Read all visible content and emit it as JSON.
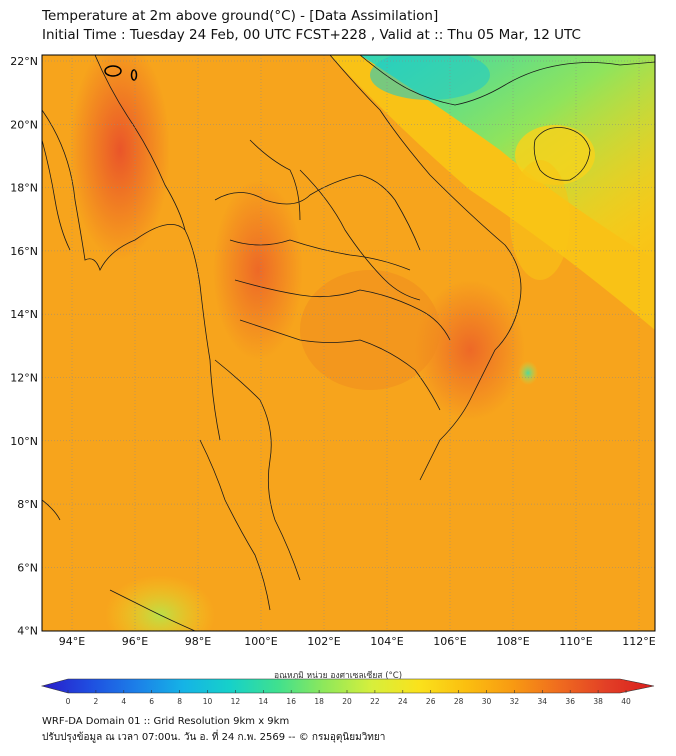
{
  "header": {
    "title_line1": "Temperature at 2m above ground(°C) - [Data Assimilation]",
    "title_line2": "Initial Time : Tuesday 24 Feb, 00 UTC FCST+228 , Valid at :: Thu 05 Mar, 12 UTC"
  },
  "map": {
    "lat_labels": [
      "22°N",
      "20°N",
      "18°N",
      "16°N",
      "14°N",
      "12°N",
      "10°N",
      "8°N",
      "6°N",
      "4°N"
    ],
    "lon_labels": [
      "94°E",
      "96°E",
      "98°E",
      "100°E",
      "102°E",
      "104°E",
      "106°E",
      "108°E",
      "110°E",
      "112°E"
    ],
    "colors": {
      "land_border": "#1a1a1a",
      "gridline": "#8a8a8a"
    }
  },
  "colorbar": {
    "title": "อุณหภูมิ หน่วย องศาเซลเซียส (°C)",
    "ticks": [
      "0",
      "2",
      "4",
      "6",
      "8",
      "10",
      "12",
      "14",
      "16",
      "18",
      "20",
      "22",
      "24",
      "26",
      "28",
      "30",
      "32",
      "34",
      "36",
      "38",
      "40"
    ],
    "colors": [
      "#2a1cc9",
      "#1f4de0",
      "#1c7fe8",
      "#15b3e6",
      "#16d1c9",
      "#3fe08f",
      "#8fe85a",
      "#d6ef3c",
      "#fae21c",
      "#fbbf10",
      "#f89a12",
      "#ef6b1f",
      "#e23f26",
      "#d91d1d"
    ]
  },
  "footer": {
    "line1": "WRF-DA Domain 01 :: Grid Resolution 9km x 9km",
    "line2": "ปรับปรุงข้อมูล ณ เวลา 07:00น. วัน อ. ที่ 24 ก.พ. 2569 -- © กรมอุตุนิยมวิทยา"
  }
}
